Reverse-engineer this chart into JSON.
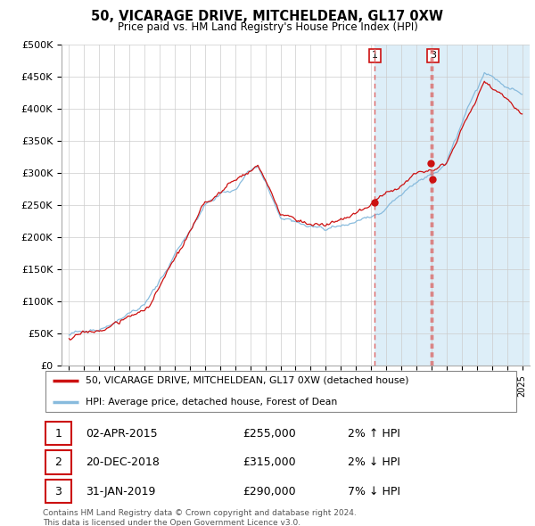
{
  "title": "50, VICARAGE DRIVE, MITCHELDEAN, GL17 0XW",
  "subtitle": "Price paid vs. HM Land Registry's House Price Index (HPI)",
  "ylim": [
    0,
    500000
  ],
  "yticks": [
    0,
    50000,
    100000,
    150000,
    200000,
    250000,
    300000,
    350000,
    400000,
    450000,
    500000
  ],
  "ytick_labels": [
    "£0",
    "£50K",
    "£100K",
    "£150K",
    "£200K",
    "£250K",
    "£300K",
    "£350K",
    "£400K",
    "£450K",
    "£500K"
  ],
  "line_color_red": "#cc1111",
  "line_color_blue": "#88bbdd",
  "fill_color": "#ddeef8",
  "vline_color": "#dd6666",
  "trans_years": [
    2015.25,
    2018.97,
    2019.08
  ],
  "trans_prices": [
    255000,
    315000,
    290000
  ],
  "chart_labels": [
    {
      "num": "1",
      "year": 2015.25
    },
    {
      "num": "3",
      "year": 2019.08
    }
  ],
  "legend_entries": [
    "50, VICARAGE DRIVE, MITCHELDEAN, GL17 0XW (detached house)",
    "HPI: Average price, detached house, Forest of Dean"
  ],
  "table_rows": [
    [
      "1",
      "02-APR-2015",
      "£255,000",
      "2% ↑ HPI"
    ],
    [
      "2",
      "20-DEC-2018",
      "£315,000",
      "2% ↓ HPI"
    ],
    [
      "3",
      "31-JAN-2019",
      "£290,000",
      "7% ↓ HPI"
    ]
  ],
  "footer": "Contains HM Land Registry data © Crown copyright and database right 2024.\nThis data is licensed under the Open Government Licence v3.0."
}
